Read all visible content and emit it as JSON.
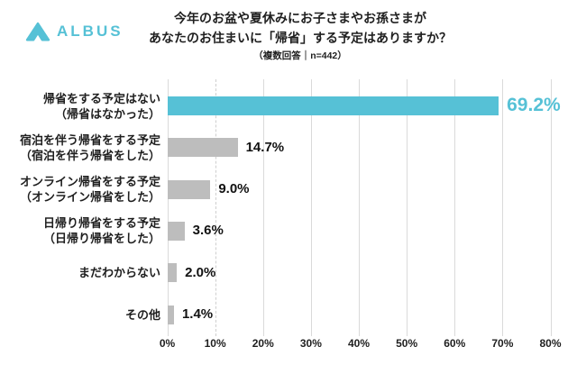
{
  "brand": {
    "name": "ALBUS"
  },
  "header": {
    "title_line1": "今年のお盆や夏休みにお子さまやお孫さまが",
    "title_line2": "あなたのお住まいに「帰省」する予定はありますか？",
    "subtitle": "（複数回答｜n=442）"
  },
  "colors": {
    "accent_teal": "#56C1D6",
    "bar_gray": "#BDBDBD",
    "grid_line": "#DADADA",
    "text_dark": "#1F1F1F"
  },
  "chart_data": {
    "type": "bar",
    "orientation": "horizontal",
    "title": "今年のお盆や夏休みにお子さまやお孫さまがあなたのお住まいに「帰省」する予定はありますか？",
    "subtitle": "（複数回答｜n=442）",
    "categories": [
      [
        "帰省をする予定はない",
        "（帰省はなかった）"
      ],
      [
        "宿泊を伴う帰省をする予定",
        "（宿泊を伴う帰省をした）"
      ],
      [
        "オンライン帰省をする予定",
        "（オンライン帰省をした）"
      ],
      [
        "日帰り帰省をする予定",
        "（日帰り帰省をした）"
      ],
      [
        "まだわからない"
      ],
      [
        "その他"
      ]
    ],
    "values": [
      69.2,
      14.7,
      9.0,
      3.6,
      2.0,
      1.4
    ],
    "value_labels": [
      "69.2%",
      "14.7%",
      "9.0%",
      "3.6%",
      "2.0%",
      "1.4%"
    ],
    "highlight_index": 0,
    "xlim": [
      0,
      80
    ],
    "tick_step": 10,
    "tick_labels": [
      "0%",
      "10%",
      "20%",
      "30%",
      "40%",
      "50%",
      "60%",
      "70%",
      "80%"
    ],
    "grid": true,
    "legend": false
  }
}
